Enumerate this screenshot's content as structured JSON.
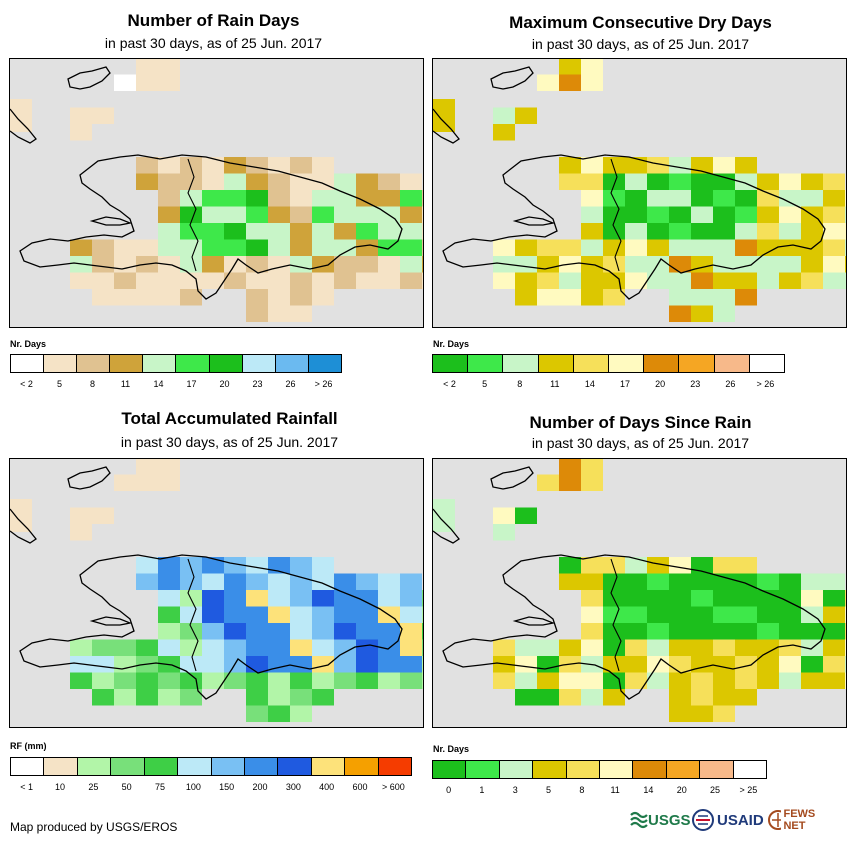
{
  "panels": [
    {
      "id": "rain-days",
      "title": "Number of Rain Days",
      "subtitle": "in past 30 days, as of 25 Jun. 2017",
      "legend_title": "Nr. Days",
      "legend_labels": [
        "< 2",
        "5",
        "8",
        "11",
        "14",
        "17",
        "20",
        "23",
        "26",
        "> 26"
      ],
      "legend_colors": [
        "#ffffff",
        "#f5e3c6",
        "#e0c291",
        "#cfa33a",
        "#c8f5c8",
        "#3ee84a",
        "#1cbf1c",
        "#bce9f7",
        "#6bbaf0",
        "#1e8fd6"
      ]
    },
    {
      "id": "max-dry-days",
      "title": "Maximum Consecutive Dry Days",
      "subtitle": "in past 30 days, as of 25 Jun. 2017",
      "legend_title": "Nr. Days",
      "legend_labels": [
        "< 2",
        "5",
        "8",
        "11",
        "14",
        "17",
        "20",
        "23",
        "26",
        "> 26"
      ],
      "legend_colors": [
        "#1cbf1c",
        "#3ee84a",
        "#c8f5c8",
        "#dcc700",
        "#f6e05a",
        "#fffac0",
        "#dd8a08",
        "#f5a623",
        "#f7b98a",
        "#ffffff"
      ]
    },
    {
      "id": "total-rainfall",
      "title": "Total Accumulated Rainfall",
      "subtitle": "in past 30 days, as of 25 Jun. 2017",
      "legend_title": "RF (mm)",
      "legend_labels": [
        "< 1",
        "10",
        "25",
        "50",
        "75",
        "100",
        "150",
        "200",
        "300",
        "400",
        "600",
        "> 600"
      ],
      "legend_colors": [
        "#ffffff",
        "#f5e3c6",
        "#b2f5a8",
        "#78e07a",
        "#3ecf46",
        "#bce9f7",
        "#79c0f3",
        "#3a8ee8",
        "#1f5ae0",
        "#fde27a",
        "#f5a000",
        "#f53c00"
      ]
    },
    {
      "id": "days-since-rain",
      "title": "Number of Days Since Rain",
      "subtitle": "in past 30 days, as of 25 Jun. 2017",
      "legend_title": "Nr. Days",
      "legend_labels": [
        "0",
        "1",
        "3",
        "5",
        "8",
        "11",
        "14",
        "20",
        "25",
        "> 25"
      ],
      "legend_colors": [
        "#1cbf1c",
        "#3ee84a",
        "#c8f5c8",
        "#dcc700",
        "#f6e05a",
        "#fffac0",
        "#dd8a08",
        "#f5a623",
        "#f7b98a",
        "#ffffff"
      ]
    }
  ],
  "credit": "Map produced by USGS/EROS",
  "logos": {
    "usgs": "USGS",
    "usaid": "USAID",
    "fewsnet": "FEWS NET"
  },
  "map_background": "#e1e1e1"
}
